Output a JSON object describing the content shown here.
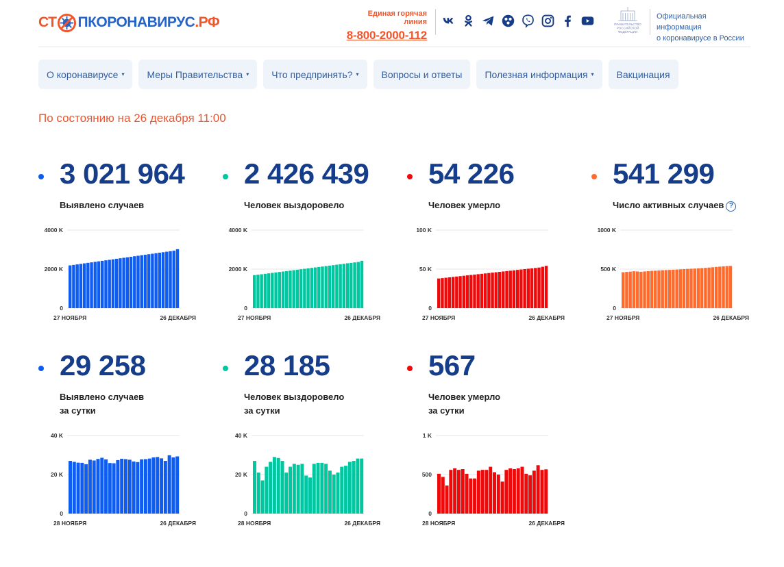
{
  "header": {
    "logo_pre": "СТ",
    "logo_post": "ПКОРОНАВИРУС",
    "logo_domain": ".РФ",
    "hotline_label": "Единая горячая линия",
    "hotline_number": "8-800-2000-112",
    "socials": [
      "vk-icon",
      "odnoklassniki-icon",
      "telegram-icon",
      "soc-network-icon",
      "viber-icon",
      "instagram-icon",
      "facebook-icon",
      "youtube-icon"
    ],
    "gov_line1": "Официальная информация",
    "gov_line2": "о коронавирусе в России",
    "emblem_lines": [
      "ПРАВИТЕЛЬСТВО",
      "РОССИЙСКОЙ",
      "ФЕДЕРАЦИИ"
    ]
  },
  "nav": {
    "items": [
      {
        "label": "О коронавирусе",
        "dropdown": true
      },
      {
        "label": "Меры Правительства",
        "dropdown": true
      },
      {
        "label": "Что предпринять?",
        "dropdown": true
      },
      {
        "label": "Вопросы и ответы",
        "dropdown": false
      },
      {
        "label": "Полезная информация",
        "dropdown": true
      },
      {
        "label": "Вакцинация",
        "dropdown": false
      }
    ],
    "caret": "▾"
  },
  "status_line": "По состоянию на 26 декабря 11:00",
  "stats": {
    "s1": {
      "value": "3 021 964",
      "label1": "Выявлено случаев",
      "label2": ""
    },
    "s2": {
      "value": "2 426 439",
      "label1": "Человек выздоровело",
      "label2": ""
    },
    "s3": {
      "value": "54 226",
      "label1": "Человек умерло",
      "label2": ""
    },
    "s4": {
      "value": "541 299",
      "label1": "Число активных случаев",
      "label2": "",
      "help": "?"
    },
    "s5": {
      "value": "29 258",
      "label1": "Выявлено случаев",
      "label2": "за сутки"
    },
    "s6": {
      "value": "28 185",
      "label1": "Человек выздоровело",
      "label2": "за сутки"
    },
    "s7": {
      "value": "567",
      "label1": "Человек умерло",
      "label2": "за сутки"
    }
  },
  "colors": {
    "blue": "#0e5cf0",
    "green": "#00c79f",
    "red": "#ee0a0a",
    "orange": "#ff6b2d"
  },
  "chart_data": [
    {
      "id": "c1",
      "type": "bar",
      "color": "blue",
      "ylim": [
        0,
        4000
      ],
      "yticks": [
        {
          "v": 0,
          "t": "0"
        },
        {
          "v": 2000,
          "t": "2000 K"
        },
        {
          "v": 4000,
          "t": "4000 K"
        }
      ],
      "x_start": "27 НОЯБРЯ",
      "x_end": "26 ДЕКАБРЯ",
      "values": [
        2190,
        2216,
        2242,
        2269,
        2295,
        2322,
        2347,
        2373,
        2400,
        2425,
        2451,
        2477,
        2503,
        2530,
        2555,
        2582,
        2607,
        2633,
        2659,
        2685,
        2712,
        2737,
        2764,
        2789,
        2815,
        2841,
        2867,
        2893,
        2919,
        2945,
        3022
      ]
    },
    {
      "id": "c2",
      "type": "bar",
      "color": "green",
      "ylim": [
        0,
        4000
      ],
      "yticks": [
        {
          "v": 0,
          "t": "0"
        },
        {
          "v": 2000,
          "t": "2000 K"
        },
        {
          "v": 4000,
          "t": "4000 K"
        }
      ],
      "x_start": "27 НОЯБРЯ",
      "x_end": "26 ДЕКАБРЯ",
      "values": [
        1690,
        1714,
        1737,
        1760,
        1784,
        1807,
        1830,
        1854,
        1877,
        1900,
        1924,
        1947,
        1970,
        1994,
        2017,
        2040,
        2064,
        2087,
        2110,
        2134,
        2157,
        2180,
        2204,
        2227,
        2250,
        2274,
        2297,
        2320,
        2344,
        2367,
        2426
      ]
    },
    {
      "id": "c3",
      "type": "bar",
      "color": "red",
      "ylim": [
        0,
        100
      ],
      "yticks": [
        {
          "v": 0,
          "t": "0"
        },
        {
          "v": 50,
          "t": "50 K"
        },
        {
          "v": 100,
          "t": "100 K"
        }
      ],
      "x_start": "27 НОЯБРЯ",
      "x_end": "26 ДЕКАБРЯ",
      "values": [
        38,
        38.5,
        39,
        39.5,
        40,
        40.5,
        41,
        41.5,
        42,
        42.5,
        43,
        43.5,
        44,
        44.5,
        45,
        45.5,
        46,
        46.5,
        47,
        47.5,
        48,
        48.5,
        49,
        49.5,
        50,
        50.5,
        51,
        51.5,
        52,
        53,
        54.2
      ]
    },
    {
      "id": "c4",
      "type": "bar",
      "color": "orange",
      "ylim": [
        0,
        1000
      ],
      "yticks": [
        {
          "v": 0,
          "t": "0"
        },
        {
          "v": 500,
          "t": "500 K"
        },
        {
          "v": 1000,
          "t": "1000 K"
        }
      ],
      "x_start": "27 НОЯБРЯ",
      "x_end": "26 ДЕКАБРЯ",
      "values": [
        460,
        464,
        468,
        472,
        470,
        466,
        470,
        474,
        478,
        480,
        483,
        486,
        488,
        490,
        492,
        494,
        497,
        500,
        503,
        505,
        507,
        510,
        513,
        516,
        520,
        524,
        528,
        532,
        536,
        539,
        541
      ]
    },
    {
      "id": "c5",
      "type": "bar",
      "color": "blue",
      "ylim": [
        0,
        40
      ],
      "yticks": [
        {
          "v": 0,
          "t": "0"
        },
        {
          "v": 20,
          "t": "20 K"
        },
        {
          "v": 40,
          "t": "40 K"
        }
      ],
      "x_start": "28 НОЯБРЯ",
      "x_end": "26 ДЕКАБРЯ",
      "values": [
        27.0,
        26.5,
        26.1,
        26.0,
        25.3,
        27.6,
        27.2,
        28.0,
        28.6,
        27.8,
        25.9,
        25.8,
        27.4,
        28.1,
        27.9,
        27.6,
        26.7,
        26.4,
        27.8,
        27.9,
        28.2,
        28.8,
        29.0,
        28.3,
        27.0,
        29.9,
        28.8,
        29.3
      ]
    },
    {
      "id": "c6",
      "type": "bar",
      "color": "green",
      "ylim": [
        0,
        40
      ],
      "yticks": [
        {
          "v": 0,
          "t": "0"
        },
        {
          "v": 20,
          "t": "20 K"
        },
        {
          "v": 40,
          "t": "40 K"
        }
      ],
      "x_start": "28 НОЯБРЯ",
      "x_end": "26 ДЕКАБРЯ",
      "values": [
        27.0,
        21.0,
        17.0,
        24.0,
        26.5,
        29.0,
        28.5,
        27.0,
        21.0,
        24.0,
        25.5,
        25.0,
        25.5,
        19.5,
        18.5,
        25.5,
        26.0,
        26.0,
        25.5,
        22.0,
        20.0,
        21.0,
        24.0,
        24.5,
        26.5,
        27.0,
        28.2,
        28.2
      ]
    },
    {
      "id": "c7",
      "type": "bar",
      "color": "red",
      "ylim": [
        0,
        1000
      ],
      "yticks": [
        {
          "v": 0,
          "t": "0"
        },
        {
          "v": 500,
          "t": "500"
        },
        {
          "v": 1000,
          "t": "1 K"
        }
      ],
      "x_start": "28 НОЯБРЯ",
      "x_end": "26 ДЕКАБРЯ",
      "values": [
        510,
        470,
        360,
        560,
        580,
        560,
        570,
        510,
        450,
        450,
        550,
        560,
        560,
        600,
        530,
        500,
        410,
        560,
        580,
        570,
        580,
        600,
        510,
        490,
        550,
        620,
        560,
        567
      ]
    }
  ]
}
